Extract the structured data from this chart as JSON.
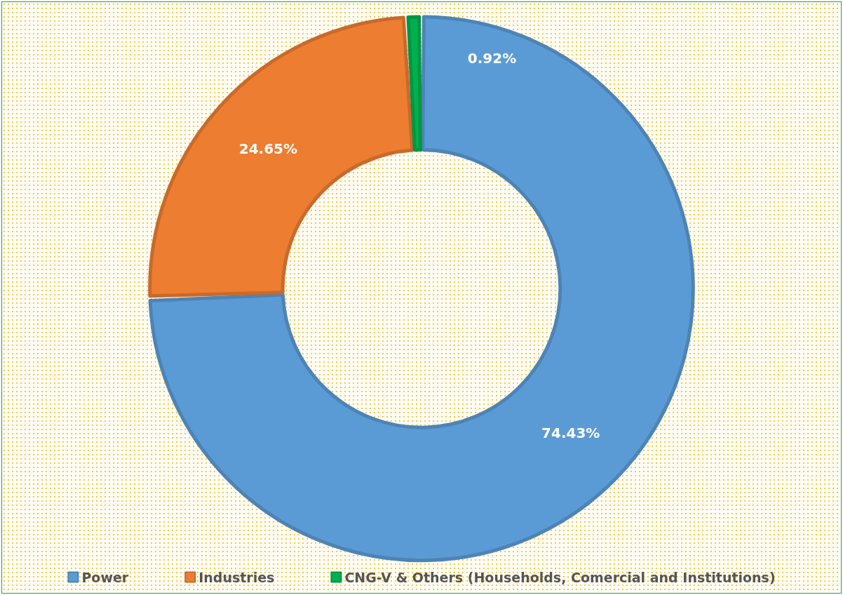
{
  "chart_data": {
    "type": "donut",
    "categories": [
      "Power",
      "Industries",
      "CNG-V & Others (Households, Comercial and Institutions)"
    ],
    "values": [
      74.43,
      24.65,
      0.92
    ],
    "colors": [
      "#5b9bd5",
      "#ed7d31",
      "#00b050"
    ],
    "value_labels": [
      "74.43%",
      "24.65%",
      "0.92%"
    ],
    "legend": "bottom"
  }
}
